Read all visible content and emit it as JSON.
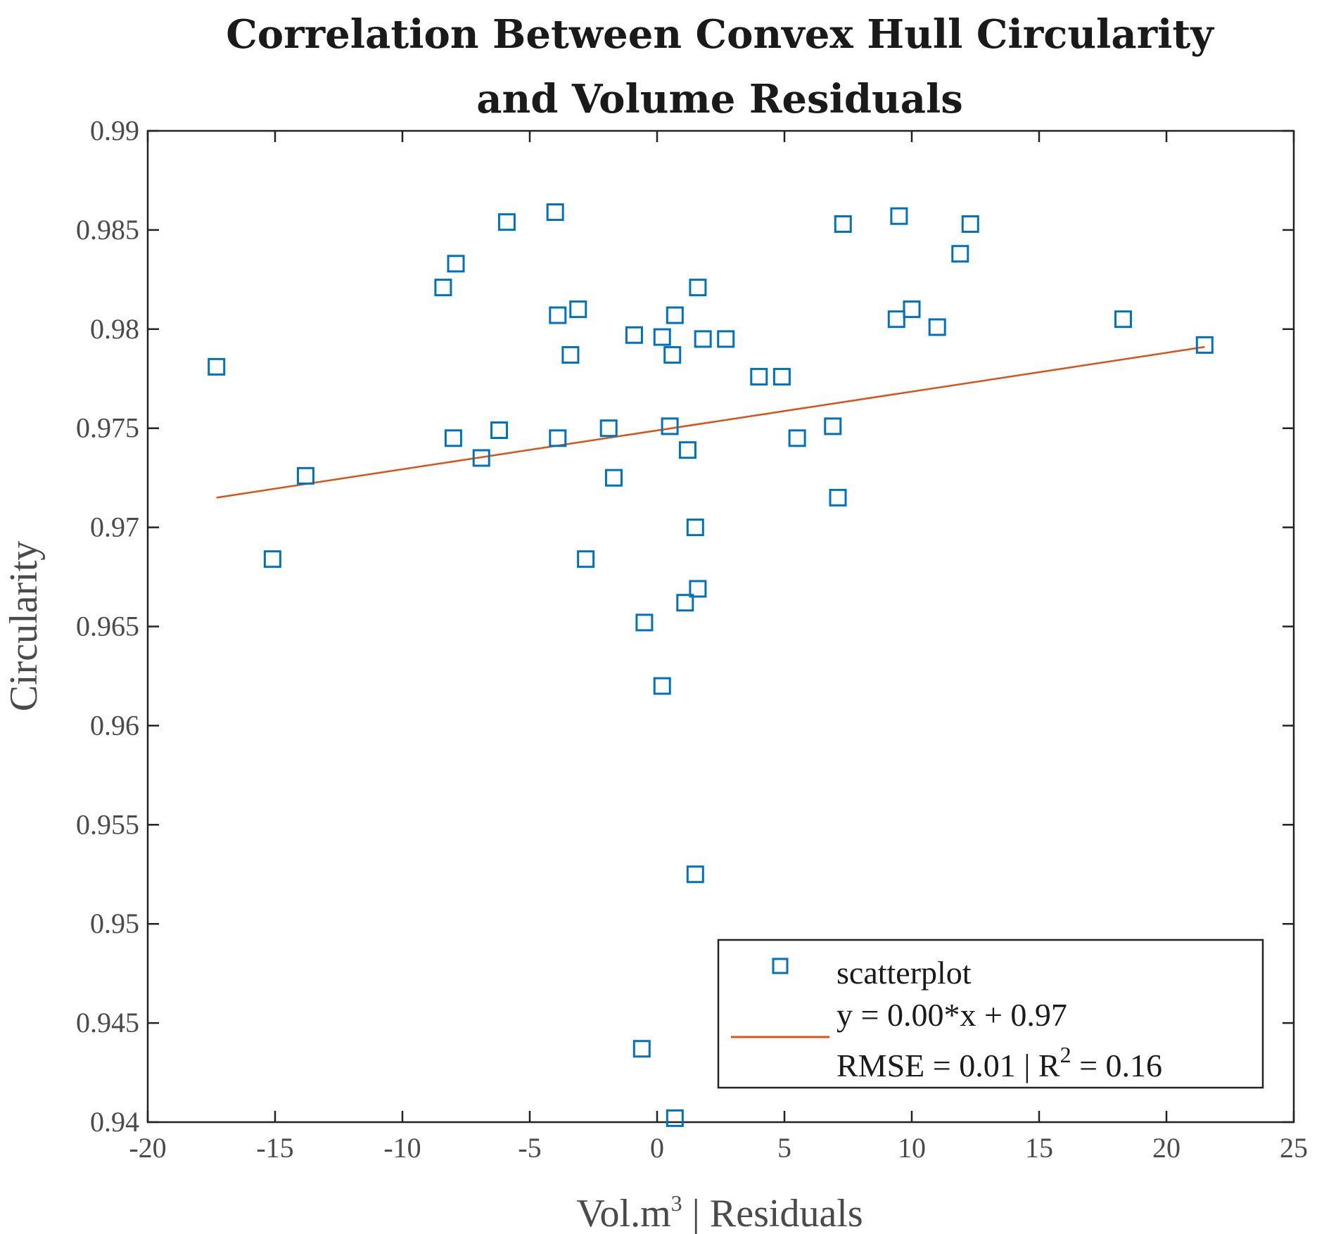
{
  "chart_data": {
    "type": "scatter",
    "title": [
      "Correlation Between Convex Hull Circularity",
      "and Volume Residuals"
    ],
    "xlabel": {
      "main": "Vol.m",
      "sup": "3",
      "rest": " | Residuals"
    },
    "ylabel": "Circularity",
    "xlim": [
      -20,
      25
    ],
    "ylim": [
      0.94,
      0.99
    ],
    "xticks": [
      "-20",
      "-15",
      "-10",
      "-5",
      "0",
      "5",
      "10",
      "15",
      "20",
      "25"
    ],
    "xtick_values": [
      -20,
      -15,
      -10,
      -5,
      0,
      5,
      10,
      15,
      20,
      25
    ],
    "yticks": [
      "0.94",
      "0.945",
      "0.95",
      "0.955",
      "0.96",
      "0.965",
      "0.97",
      "0.975",
      "0.98",
      "0.985",
      "0.99"
    ],
    "ytick_values": [
      0.94,
      0.945,
      0.95,
      0.955,
      0.96,
      0.965,
      0.97,
      0.975,
      0.98,
      0.985,
      0.99
    ],
    "grid": false,
    "series": [
      {
        "name": "scatterplot",
        "marker": "square",
        "color": "#0072BD",
        "points": [
          [
            -17.3,
            0.9781
          ],
          [
            -15.1,
            0.9684
          ],
          [
            -13.8,
            0.9726
          ],
          [
            -8.4,
            0.9821
          ],
          [
            -7.9,
            0.9833
          ],
          [
            -8.0,
            0.9745
          ],
          [
            -6.9,
            0.9735
          ],
          [
            -6.2,
            0.9749
          ],
          [
            -5.9,
            0.9854
          ],
          [
            -4.0,
            0.9859
          ],
          [
            -3.9,
            0.9807
          ],
          [
            -3.9,
            0.9745
          ],
          [
            -3.1,
            0.981
          ],
          [
            -3.4,
            0.9787
          ],
          [
            -2.8,
            0.9684
          ],
          [
            -1.9,
            0.975
          ],
          [
            -1.7,
            0.9725
          ],
          [
            -0.9,
            0.9797
          ],
          [
            -0.5,
            0.9652
          ],
          [
            -0.6,
            0.9437
          ],
          [
            0.2,
            0.9796
          ],
          [
            0.2,
            0.962
          ],
          [
            0.5,
            0.9751
          ],
          [
            0.6,
            0.9787
          ],
          [
            0.7,
            0.9807
          ],
          [
            0.7,
            0.9402
          ],
          [
            1.1,
            0.9662
          ],
          [
            1.2,
            0.9739
          ],
          [
            1.5,
            0.97
          ],
          [
            1.6,
            0.9821
          ],
          [
            1.6,
            0.9669
          ],
          [
            1.5,
            0.9525
          ],
          [
            1.8,
            0.9795
          ],
          [
            2.7,
            0.9795
          ],
          [
            4.0,
            0.9776
          ],
          [
            4.9,
            0.9776
          ],
          [
            5.5,
            0.9745
          ],
          [
            6.9,
            0.9751
          ],
          [
            7.1,
            0.9715
          ],
          [
            7.3,
            0.9853
          ],
          [
            9.4,
            0.9805
          ],
          [
            9.5,
            0.9857
          ],
          [
            10.0,
            0.981
          ],
          [
            11.0,
            0.9801
          ],
          [
            11.9,
            0.9838
          ],
          [
            12.3,
            0.9853
          ],
          [
            18.3,
            0.9805
          ],
          [
            21.5,
            0.9792
          ]
        ]
      },
      {
        "name": "y = 0.00*x + 0.97",
        "type": "line",
        "color": "#D95319",
        "x": [
          -17.3,
          21.5
        ],
        "y": [
          0.9715,
          0.9791
        ]
      }
    ],
    "legend": {
      "position": "bottom-right",
      "entries": [
        "scatterplot",
        "y = 0.00*x + 0.97"
      ],
      "stats_prefix": "RMSE = 0.01  |  R",
      "stats_sup": "2",
      "stats_suffix": " = 0.16"
    }
  }
}
